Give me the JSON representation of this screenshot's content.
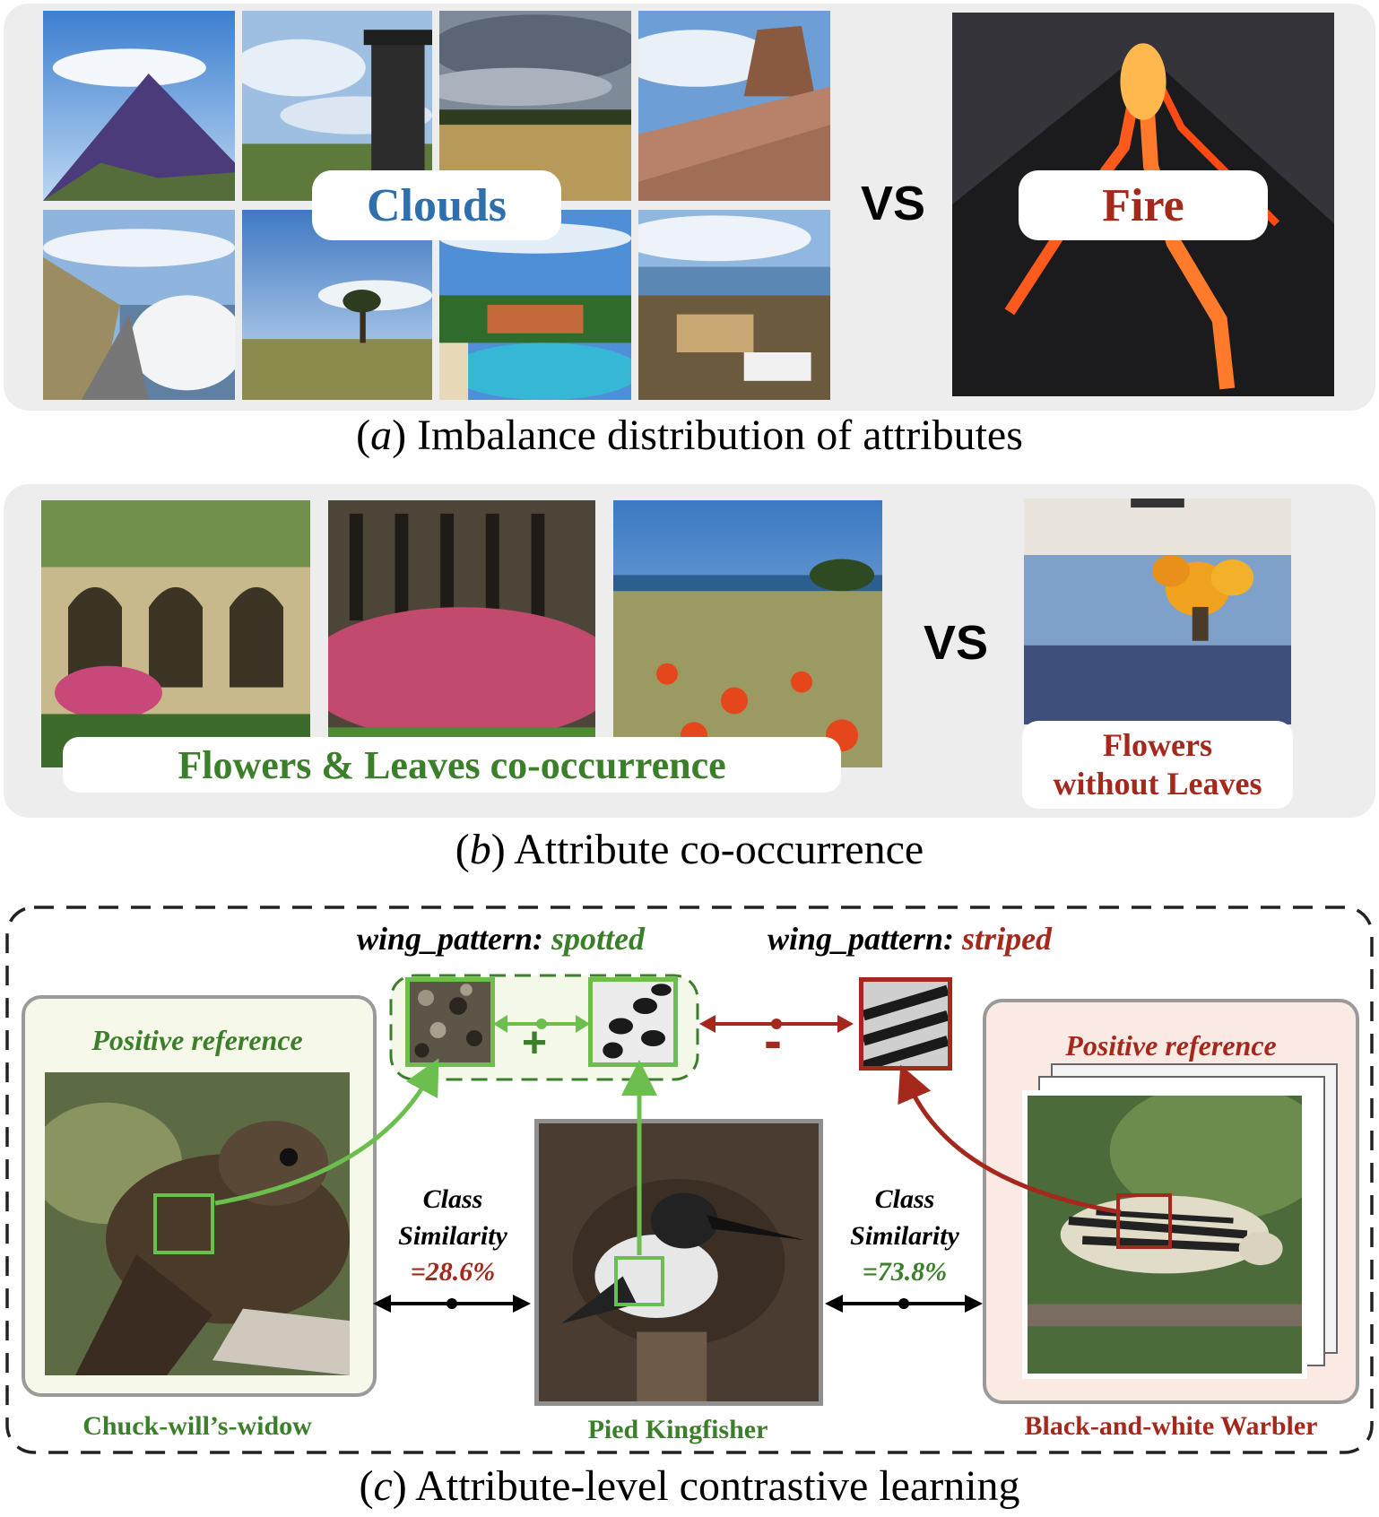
{
  "panel_a": {
    "label_clouds": "Clouds",
    "vs": "VS",
    "label_fire": "Fire",
    "caption_letter": "a",
    "caption_text": "Imbalance distribution of attributes"
  },
  "panel_b": {
    "label_cooccur": "Flowers & Leaves co-occurrence",
    "vs": "VS",
    "label_without_line1": "Flowers",
    "label_without_line2": "without Leaves",
    "caption_letter": "b",
    "caption_text": "Attribute co-occurrence"
  },
  "panel_c": {
    "attr_spotted_key": "wing_pattern:",
    "attr_spotted_val": "spotted",
    "attr_striped_key": "wing_pattern:",
    "attr_striped_val": "striped",
    "plus": "+",
    "minus": "-",
    "left_ref": "Positive reference",
    "right_ref": "Positive reference",
    "sim_left_line1": "Class",
    "sim_left_line2": "Similarity",
    "sim_left_value": "=28.6%",
    "sim_right_line1": "Class",
    "sim_right_line2": "Similarity",
    "sim_right_value": "=73.8%",
    "bird_left": "Chuck-will’s-widow",
    "bird_center": "Pied Kingfisher",
    "bird_right": "Black-and-white Warbler",
    "caption_letter": "c",
    "caption_text": "Attribute-level contrastive learning"
  },
  "colors": {
    "green": "#3c7f2a",
    "red": "#a4281c",
    "blue": "#2e6fae",
    "arrow_green": "#6cbf4e"
  }
}
